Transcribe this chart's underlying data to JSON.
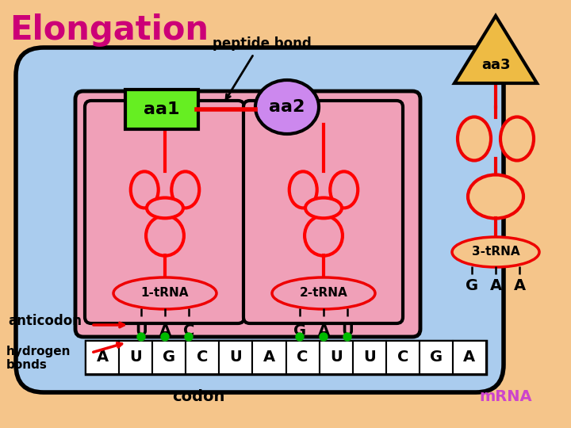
{
  "bg": "#F5C58A",
  "blue": "#AACCEE",
  "pink": "#F0A0B8",
  "red": "#EE0000",
  "green_dot": "#00BB00",
  "title": "Elongation",
  "title_color": "#CC0077",
  "peptide_bond": "peptide bond",
  "aa1_label": "aa1",
  "aa2_label": "aa2",
  "aa3_label": "aa3",
  "aa1_color": "#66EE22",
  "aa2_color": "#CC88EE",
  "aa3_color": "#EEBB44",
  "trna1_label": "1-tRNA",
  "trna2_label": "2-tRNA",
  "trna3_label": "3-tRNA",
  "anticodon1": [
    "U",
    "A",
    "C"
  ],
  "anticodon2": [
    "G",
    "A",
    "U"
  ],
  "anticodon3": [
    "G",
    "A",
    "A"
  ],
  "codons": [
    "A",
    "U",
    "G",
    "C",
    "U",
    "A",
    "C",
    "U",
    "U",
    "C",
    "G",
    "A"
  ],
  "anticodon_label": "anticodon",
  "hbond_label": "hydrogen\nbonds",
  "codon_label": "codon",
  "mrna_label": "mRNA",
  "mrna_label_color": "#CC44CC"
}
